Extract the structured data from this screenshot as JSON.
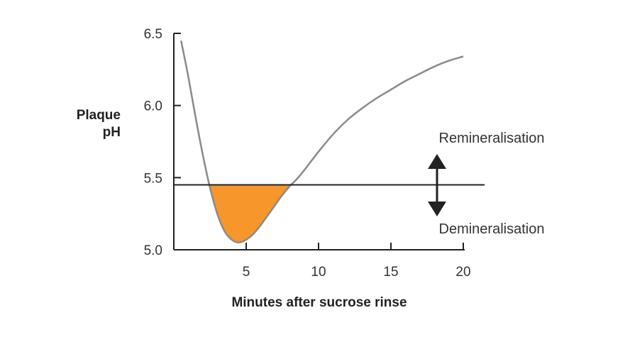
{
  "chart_data": {
    "type": "line",
    "title": "",
    "xlabel": "Minutes after sucrose rinse",
    "ylabel": [
      "Plaque",
      "pH"
    ],
    "xlim": [
      0,
      20
    ],
    "ylim": [
      5.0,
      6.5
    ],
    "xticks": [
      5,
      10,
      15,
      20
    ],
    "xtick_labels": [
      "5",
      "10",
      "15",
      "20"
    ],
    "yticks": [
      5.0,
      5.5,
      6.0,
      6.5
    ],
    "ytick_labels": [
      "5.0",
      "5.5",
      "6.0",
      "6.5"
    ],
    "grid": false,
    "series": [
      {
        "x": [
          0.5,
          1,
          1.5,
          2,
          2.5,
          3,
          3.5,
          4,
          4.5,
          5,
          5.5,
          6,
          6.5,
          7,
          7.5,
          8,
          8.5,
          9,
          10,
          11,
          12,
          13,
          14,
          15,
          16,
          17,
          18,
          19,
          20
        ],
        "y": [
          6.45,
          6.2,
          5.92,
          5.66,
          5.43,
          5.25,
          5.13,
          5.07,
          5.05,
          5.07,
          5.11,
          5.17,
          5.24,
          5.31,
          5.38,
          5.44,
          5.49,
          5.55,
          5.68,
          5.8,
          5.9,
          5.98,
          6.05,
          6.11,
          6.17,
          6.22,
          6.27,
          6.31,
          6.34
        ]
      }
    ],
    "threshold": 5.45,
    "shaded_region": {
      "below": 5.45,
      "x_from": 2.4,
      "x_to": 8.6,
      "color": "#F7962B"
    },
    "annotations": {
      "above": "Remineralisation",
      "below": "Demineralisation"
    },
    "colors": {
      "line": "#8a8a8a",
      "axis": "#222222",
      "threshold": "#222222",
      "fill": "#F7962B",
      "arrow": "#222222"
    }
  }
}
